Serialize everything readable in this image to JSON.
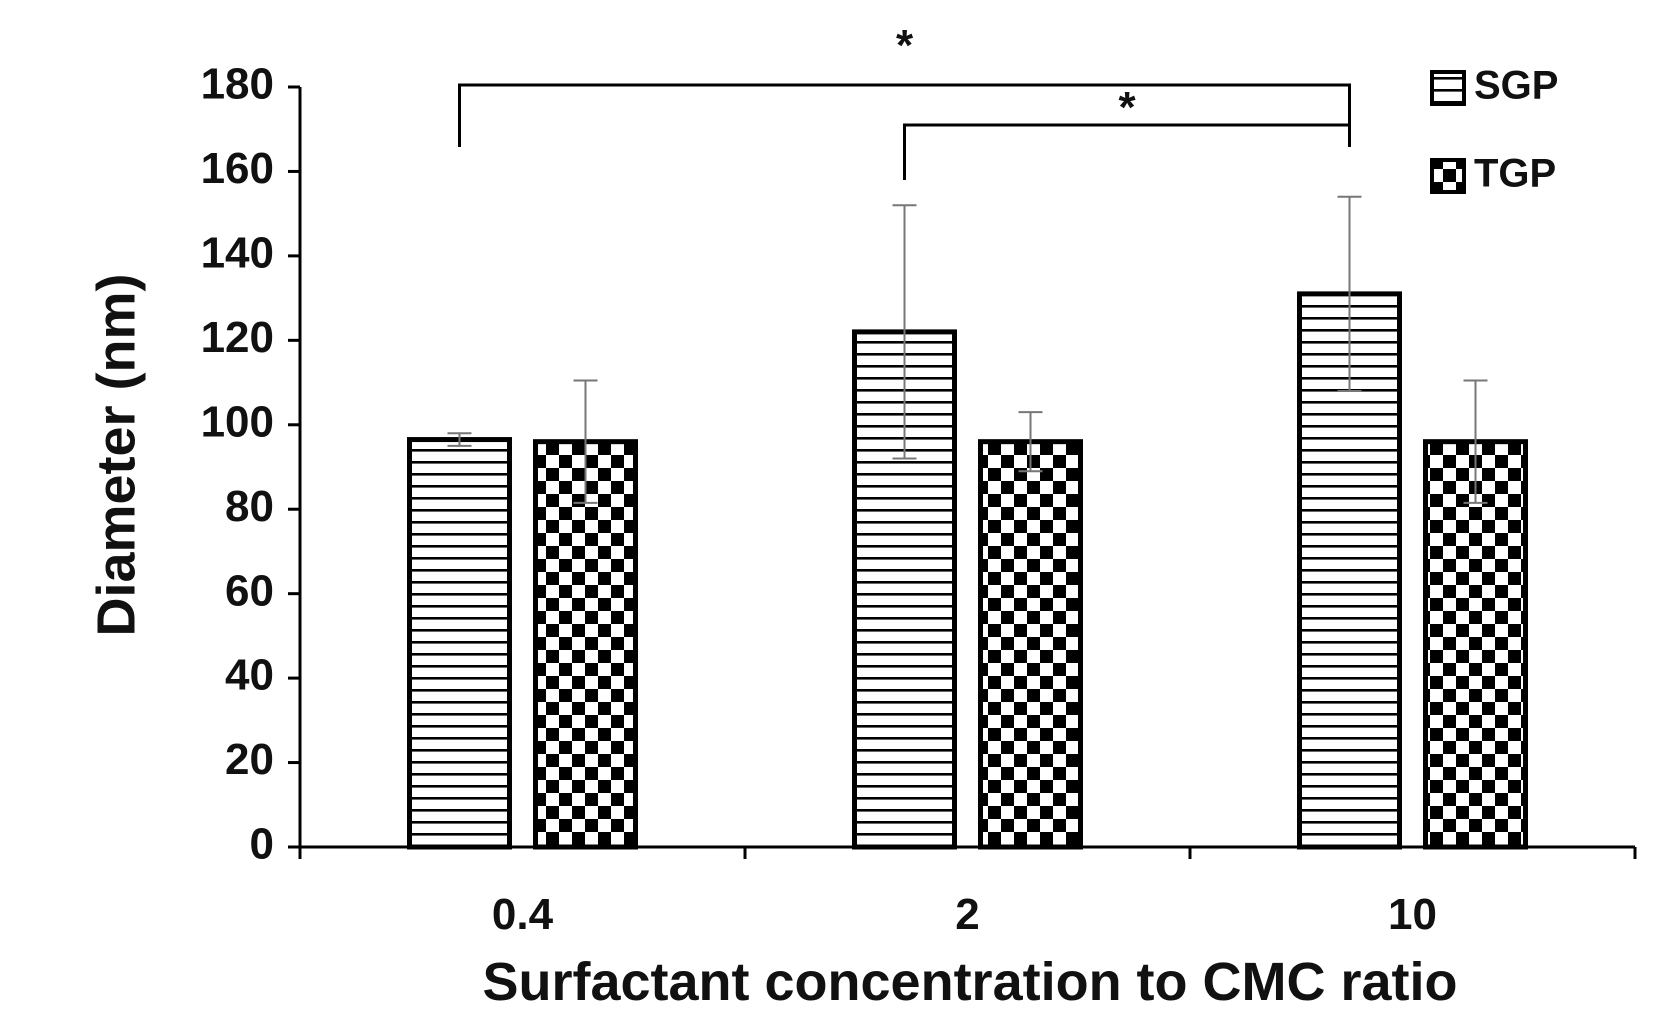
{
  "chart_data": {
    "type": "bar",
    "title": "",
    "xlabel": "Surfactant concentration to CMC ratio",
    "ylabel": "Diameter (nm)",
    "categories": [
      "0.4",
      "2",
      "10"
    ],
    "ylim": [
      0,
      180
    ],
    "yticks": [
      "0",
      "20",
      "40",
      "60",
      "80",
      "100",
      "120",
      "140",
      "160",
      "180"
    ],
    "series": [
      {
        "name": "SGP",
        "pattern": "horizontal-stripes",
        "values": [
          96.5,
          122,
          131
        ],
        "errors": [
          1.5,
          30,
          23
        ]
      },
      {
        "name": "TGP",
        "pattern": "checkerboard",
        "values": [
          96,
          96,
          96
        ],
        "errors": [
          14.5,
          7,
          14.5
        ]
      }
    ],
    "significance": [
      {
        "from_category": "0.4",
        "to_category": "10",
        "label": "*"
      },
      {
        "from_category": "2",
        "to_category": "10",
        "label": "*"
      }
    ],
    "grid": false,
    "legend_position": "top-right",
    "colors": {
      "bar_edge": "#000000",
      "error_bar": "#777777",
      "axis": "#000000"
    }
  }
}
